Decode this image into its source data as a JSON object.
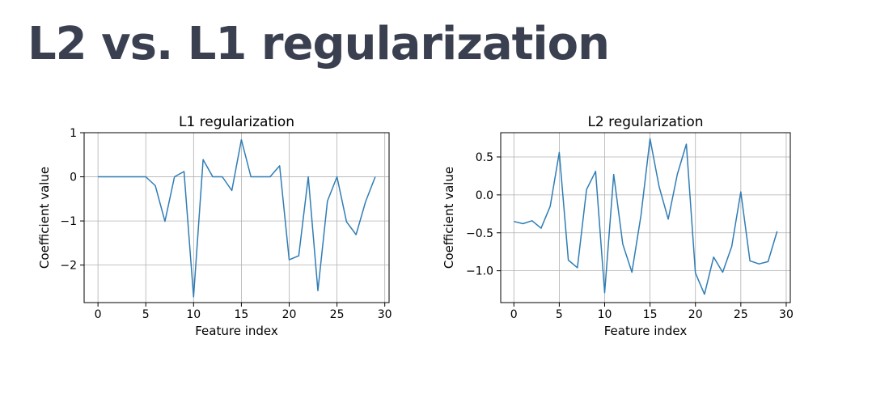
{
  "slide": {
    "title": "L2 vs. L1 regularization"
  },
  "chart_data": [
    {
      "type": "line",
      "title": "L1 regularization",
      "xlabel": "Feature index",
      "ylabel": "Coefficient value",
      "xlim": [
        -1.45,
        30.45
      ],
      "ylim": [
        -2.85,
        1.0
      ],
      "grid": true,
      "line_color": "#2f7db5",
      "xticks": [
        0,
        5,
        10,
        15,
        20,
        25,
        30
      ],
      "xtick_labels": [
        "0",
        "5",
        "10",
        "15",
        "20",
        "25",
        "30"
      ],
      "yticks": [
        1,
        0,
        -1,
        -2
      ],
      "ytick_labels": [
        "1",
        "0",
        "−1",
        "−2"
      ],
      "x": [
        0,
        1,
        2,
        3,
        4,
        5,
        6,
        7,
        8,
        9,
        10,
        11,
        12,
        13,
        14,
        15,
        16,
        17,
        18,
        19,
        20,
        21,
        22,
        23,
        24,
        25,
        26,
        27,
        28,
        29
      ],
      "series": [
        {
          "values": [
            0,
            0,
            0,
            0,
            0,
            0,
            -0.2,
            -1.01,
            0,
            0.12,
            -2.72,
            0.39,
            0,
            0,
            -0.31,
            0.84,
            0,
            0,
            0,
            0.25,
            -1.88,
            -1.79,
            0,
            -2.58,
            -0.55,
            0,
            -1.02,
            -1.31,
            -0.56,
            0
          ]
        }
      ]
    },
    {
      "type": "line",
      "title": "L2 regularization",
      "xlabel": "Feature index",
      "ylabel": "Coefficient value",
      "xlim": [
        -1.45,
        30.45
      ],
      "ylim": [
        -1.42,
        0.82
      ],
      "grid": true,
      "line_color": "#2f7db5",
      "xticks": [
        0,
        5,
        10,
        15,
        20,
        25,
        30
      ],
      "xtick_labels": [
        "0",
        "5",
        "10",
        "15",
        "20",
        "25",
        "30"
      ],
      "yticks": [
        0.5,
        0.0,
        -0.5,
        -1.0
      ],
      "ytick_labels": [
        "0.5",
        "0.0",
        "−0.5",
        "−1.0"
      ],
      "x": [
        0,
        1,
        2,
        3,
        4,
        5,
        6,
        7,
        8,
        9,
        10,
        11,
        12,
        13,
        14,
        15,
        16,
        17,
        18,
        19,
        20,
        21,
        22,
        23,
        24,
        25,
        26,
        27,
        28,
        29
      ],
      "series": [
        {
          "values": [
            -0.35,
            -0.38,
            -0.34,
            -0.44,
            -0.15,
            0.56,
            -0.86,
            -0.96,
            0.07,
            0.31,
            -1.29,
            0.27,
            -0.65,
            -1.02,
            -0.27,
            0.74,
            0.11,
            -0.32,
            0.27,
            0.67,
            -1.03,
            -1.31,
            -0.82,
            -1.02,
            -0.68,
            0.04,
            -0.87,
            -0.91,
            -0.88,
            -0.48
          ]
        }
      ]
    }
  ]
}
